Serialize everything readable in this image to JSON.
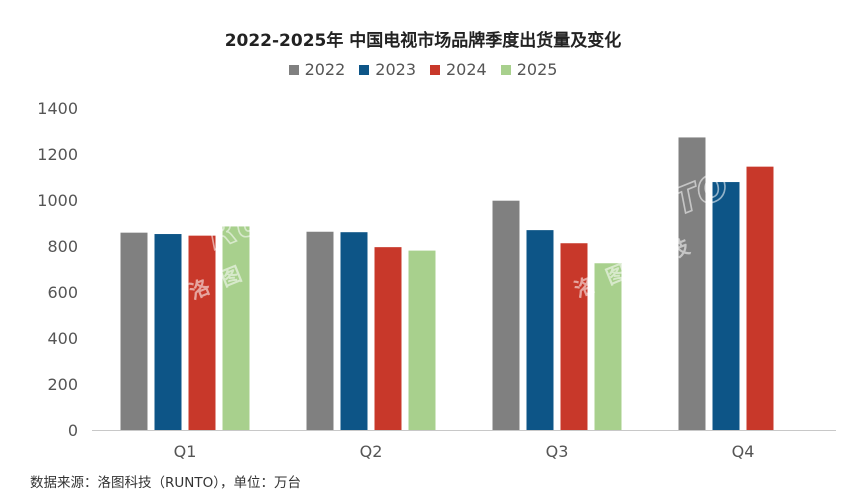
{
  "chart_data": {
    "type": "bar",
    "title": "2022-2025年 中国电视市场品牌季度出货量及变化",
    "categories": [
      "Q1",
      "Q2",
      "Q3",
      "Q4"
    ],
    "series": [
      {
        "name": "2022",
        "color": "#808080",
        "values": [
          858,
          862,
          997,
          1272
        ]
      },
      {
        "name": "2023",
        "color": "#0d5587",
        "values": [
          852,
          860,
          869,
          1078
        ]
      },
      {
        "name": "2024",
        "color": "#c8382a",
        "values": [
          845,
          795,
          812,
          1145
        ]
      },
      {
        "name": "2025",
        "color": "#a8d08d",
        "values": [
          885,
          780,
          725,
          null
        ]
      }
    ],
    "ylim": [
      0,
      1400
    ],
    "yticks": [
      0,
      200,
      400,
      600,
      800,
      1000,
      1200,
      1400
    ],
    "grid": false,
    "legend_position": "top-center"
  },
  "source_note": "数据来源：洛图科技（RUNTO），单位：万台",
  "watermark": {
    "brand": "RUNTO",
    "name_cn": "洛图科技"
  }
}
